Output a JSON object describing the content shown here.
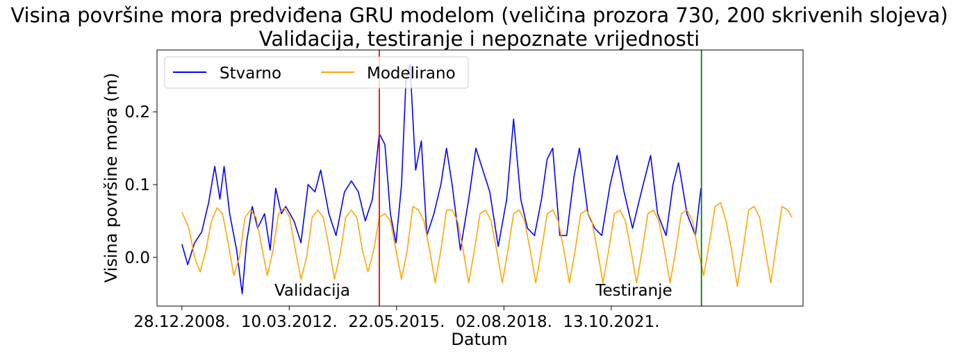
{
  "chart_data": {
    "type": "line",
    "title": "Visina površine mora predviđena GRU modelom (veličina prozora 730, 200 skrivenih slojeva)",
    "subtitle": "Validacija, testiranje i nepoznate vrijednosti",
    "xlabel": "Datum",
    "ylabel": "Visina površine mora (m)",
    "x_tick_labels": [
      "28.12.2008.",
      "10.03.2012.",
      "22.05.2015.",
      "02.08.2018.",
      "13.10.2021."
    ],
    "y_tick_labels": [
      "0.0",
      "0.1",
      "0.2"
    ],
    "y_ticks": [
      0.0,
      0.1,
      0.2
    ],
    "xlim": [
      "2008-04-01",
      "2027-07-01"
    ],
    "ylim": [
      -0.067,
      0.285
    ],
    "grid": false,
    "legend_placement": "top-left",
    "series": [
      {
        "name": "Stvarno",
        "color": "#0000ff",
        "points": [
          [
            "2008-12-28",
            0.018
          ],
          [
            "2009-03-01",
            -0.01
          ],
          [
            "2009-05-15",
            0.02
          ],
          [
            "2009-08-01",
            0.035
          ],
          [
            "2009-10-15",
            0.075
          ],
          [
            "2009-12-20",
            0.125
          ],
          [
            "2010-02-15",
            0.08
          ],
          [
            "2010-04-01",
            0.125
          ],
          [
            "2010-06-01",
            0.06
          ],
          [
            "2010-08-15",
            0.01
          ],
          [
            "2010-10-15",
            -0.05
          ],
          [
            "2010-12-01",
            0.02
          ],
          [
            "2011-02-01",
            0.07
          ],
          [
            "2011-04-01",
            0.04
          ],
          [
            "2011-06-15",
            0.06
          ],
          [
            "2011-08-15",
            0.01
          ],
          [
            "2011-10-15",
            0.095
          ],
          [
            "2011-12-15",
            0.06
          ],
          [
            "2012-02-01",
            0.07
          ],
          [
            "2012-05-01",
            0.05
          ],
          [
            "2012-07-15",
            0.02
          ],
          [
            "2012-10-01",
            0.1
          ],
          [
            "2012-12-15",
            0.09
          ],
          [
            "2013-02-15",
            0.12
          ],
          [
            "2013-05-15",
            0.06
          ],
          [
            "2013-08-01",
            0.03
          ],
          [
            "2013-11-01",
            0.09
          ],
          [
            "2014-01-15",
            0.105
          ],
          [
            "2014-04-01",
            0.09
          ],
          [
            "2014-06-15",
            0.05
          ],
          [
            "2014-09-01",
            0.08
          ],
          [
            "2014-11-15",
            0.17
          ],
          [
            "2015-01-15",
            0.155
          ],
          [
            "2015-03-15",
            0.06
          ],
          [
            "2015-05-15",
            0.02
          ],
          [
            "2015-07-15",
            0.1
          ],
          [
            "2015-09-01",
            0.245
          ],
          [
            "2015-10-15",
            0.265
          ],
          [
            "2015-12-15",
            0.12
          ],
          [
            "2016-02-15",
            0.16
          ],
          [
            "2016-04-15",
            0.03
          ],
          [
            "2016-07-01",
            0.06
          ],
          [
            "2016-09-15",
            0.1
          ],
          [
            "2016-11-15",
            0.15
          ],
          [
            "2017-01-15",
            0.1
          ],
          [
            "2017-04-15",
            0.01
          ],
          [
            "2017-07-15",
            0.08
          ],
          [
            "2017-10-01",
            0.15
          ],
          [
            "2017-12-15",
            0.12
          ],
          [
            "2018-03-01",
            0.09
          ],
          [
            "2018-06-01",
            0.015
          ],
          [
            "2018-09-01",
            0.08
          ],
          [
            "2018-11-15",
            0.19
          ],
          [
            "2019-02-01",
            0.08
          ],
          [
            "2019-04-15",
            0.04
          ],
          [
            "2019-07-01",
            0.03
          ],
          [
            "2019-09-15",
            0.08
          ],
          [
            "2019-11-15",
            0.135
          ],
          [
            "2020-01-15",
            0.15
          ],
          [
            "2020-04-01",
            0.03
          ],
          [
            "2020-06-15",
            0.03
          ],
          [
            "2020-09-01",
            0.11
          ],
          [
            "2020-11-01",
            0.15
          ],
          [
            "2021-02-01",
            0.06
          ],
          [
            "2021-04-15",
            0.04
          ],
          [
            "2021-07-01",
            0.03
          ],
          [
            "2021-10-01",
            0.1
          ],
          [
            "2021-12-15",
            0.14
          ],
          [
            "2022-03-01",
            0.09
          ],
          [
            "2022-06-01",
            0.04
          ],
          [
            "2022-09-15",
            0.095
          ],
          [
            "2022-12-15",
            0.14
          ],
          [
            "2023-03-01",
            0.06
          ],
          [
            "2023-06-01",
            0.03
          ],
          [
            "2023-08-15",
            0.1
          ],
          [
            "2023-10-15",
            0.13
          ],
          [
            "2024-01-15",
            0.06
          ],
          [
            "2024-04-15",
            0.03
          ],
          [
            "2024-06-15",
            0.095
          ]
        ]
      },
      {
        "name": "Modelirano",
        "color": "#ffa500",
        "points": [
          [
            "2008-12-28",
            0.062
          ],
          [
            "2009-03-15",
            0.04
          ],
          [
            "2009-05-15",
            0.0
          ],
          [
            "2009-07-15",
            -0.02
          ],
          [
            "2009-09-15",
            0.01
          ],
          [
            "2009-11-15",
            0.05
          ],
          [
            "2010-01-15",
            0.068
          ],
          [
            "2010-03-15",
            0.06
          ],
          [
            "2010-05-15",
            0.02
          ],
          [
            "2010-07-15",
            -0.025
          ],
          [
            "2010-09-15",
            0.0
          ],
          [
            "2010-11-15",
            0.055
          ],
          [
            "2011-01-15",
            0.065
          ],
          [
            "2011-03-15",
            0.055
          ],
          [
            "2011-05-15",
            0.015
          ],
          [
            "2011-07-15",
            -0.025
          ],
          [
            "2011-09-15",
            0.01
          ],
          [
            "2011-11-15",
            0.06
          ],
          [
            "2012-01-15",
            0.068
          ],
          [
            "2012-03-15",
            0.055
          ],
          [
            "2012-05-15",
            0.01
          ],
          [
            "2012-07-15",
            -0.03
          ],
          [
            "2012-09-15",
            0.0
          ],
          [
            "2012-11-15",
            0.055
          ],
          [
            "2013-01-15",
            0.065
          ],
          [
            "2013-03-15",
            0.055
          ],
          [
            "2013-05-15",
            0.015
          ],
          [
            "2013-07-15",
            -0.03
          ],
          [
            "2013-09-15",
            0.005
          ],
          [
            "2013-11-15",
            0.055
          ],
          [
            "2014-01-15",
            0.065
          ],
          [
            "2014-03-15",
            0.055
          ],
          [
            "2014-05-15",
            0.01
          ],
          [
            "2014-07-15",
            -0.02
          ],
          [
            "2014-09-15",
            0.01
          ],
          [
            "2014-11-15",
            0.055
          ],
          [
            "2015-01-15",
            0.06
          ],
          [
            "2015-03-15",
            0.05
          ],
          [
            "2015-05-15",
            0.01
          ],
          [
            "2015-07-15",
            -0.03
          ],
          [
            "2015-09-15",
            0.01
          ],
          [
            "2015-11-15",
            0.07
          ],
          [
            "2016-01-15",
            0.065
          ],
          [
            "2016-03-15",
            0.05
          ],
          [
            "2016-05-15",
            0.01
          ],
          [
            "2016-07-15",
            -0.035
          ],
          [
            "2016-09-15",
            0.01
          ],
          [
            "2016-11-15",
            0.065
          ],
          [
            "2017-01-15",
            0.065
          ],
          [
            "2017-03-15",
            0.05
          ],
          [
            "2017-05-15",
            0.01
          ],
          [
            "2017-07-15",
            -0.035
          ],
          [
            "2017-09-15",
            0.01
          ],
          [
            "2017-11-15",
            0.06
          ],
          [
            "2018-01-15",
            0.065
          ],
          [
            "2018-03-15",
            0.05
          ],
          [
            "2018-05-15",
            0.01
          ],
          [
            "2018-07-15",
            -0.035
          ],
          [
            "2018-09-15",
            0.01
          ],
          [
            "2018-11-15",
            0.06
          ],
          [
            "2019-01-15",
            0.065
          ],
          [
            "2019-03-15",
            0.05
          ],
          [
            "2019-05-15",
            0.01
          ],
          [
            "2019-07-15",
            -0.035
          ],
          [
            "2019-09-15",
            0.01
          ],
          [
            "2019-11-15",
            0.06
          ],
          [
            "2020-01-15",
            0.065
          ],
          [
            "2020-03-15",
            0.05
          ],
          [
            "2020-05-15",
            0.01
          ],
          [
            "2020-07-15",
            -0.035
          ],
          [
            "2020-09-15",
            0.01
          ],
          [
            "2020-11-15",
            0.06
          ],
          [
            "2021-01-15",
            0.065
          ],
          [
            "2021-03-15",
            0.05
          ],
          [
            "2021-05-15",
            0.01
          ],
          [
            "2021-07-15",
            -0.035
          ],
          [
            "2021-09-15",
            0.01
          ],
          [
            "2021-11-15",
            0.06
          ],
          [
            "2022-01-15",
            0.065
          ],
          [
            "2022-03-15",
            0.05
          ],
          [
            "2022-05-15",
            0.01
          ],
          [
            "2022-07-15",
            -0.035
          ],
          [
            "2022-09-15",
            0.01
          ],
          [
            "2022-11-15",
            0.06
          ],
          [
            "2023-01-15",
            0.065
          ],
          [
            "2023-03-15",
            0.05
          ],
          [
            "2023-05-15",
            0.01
          ],
          [
            "2023-07-15",
            -0.035
          ],
          [
            "2023-09-15",
            0.01
          ],
          [
            "2023-11-15",
            0.06
          ],
          [
            "2024-01-15",
            0.065
          ],
          [
            "2024-03-15",
            0.05
          ],
          [
            "2024-05-15",
            0.01
          ],
          [
            "2024-07-15",
            -0.025
          ],
          [
            "2024-09-15",
            0.02
          ],
          [
            "2024-11-15",
            0.07
          ],
          [
            "2025-01-15",
            0.075
          ],
          [
            "2025-03-15",
            0.05
          ],
          [
            "2025-05-15",
            0.01
          ],
          [
            "2025-07-15",
            -0.04
          ],
          [
            "2025-09-15",
            0.01
          ],
          [
            "2025-11-15",
            0.065
          ],
          [
            "2026-01-15",
            0.07
          ],
          [
            "2026-03-15",
            0.055
          ],
          [
            "2026-05-15",
            0.01
          ],
          [
            "2026-07-15",
            -0.035
          ],
          [
            "2026-09-15",
            0.02
          ],
          [
            "2026-11-15",
            0.07
          ],
          [
            "2027-01-15",
            0.065
          ],
          [
            "2027-03-01",
            0.055
          ]
        ]
      }
    ],
    "vertical_lines": [
      {
        "x": "2014-11-15",
        "color": "#ff0000",
        "label": "Validacija",
        "label_color": "#000000"
      },
      {
        "x": "2024-06-20",
        "color": "#008000",
        "label": "Testiranje",
        "label_color": "#ff0000"
      }
    ]
  }
}
